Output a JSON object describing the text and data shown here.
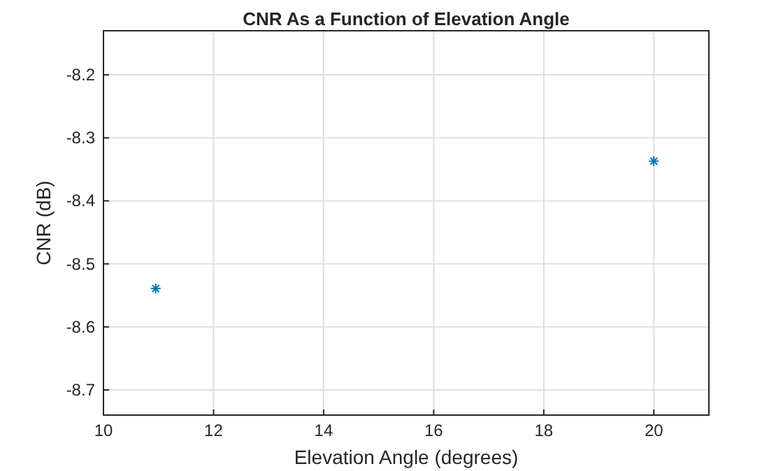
{
  "chart_data": {
    "type": "scatter",
    "title": "CNR As a Function of Elevation Angle",
    "xlabel": "Elevation Angle (degrees)",
    "ylabel": "CNR (dB)",
    "x": [
      10.95,
      20
    ],
    "series": [
      {
        "color": "#0072bd",
        "values": [
          -8.539,
          -8.337
        ]
      }
    ],
    "xlim": [
      10,
      21
    ],
    "xticks": [
      10,
      12,
      14,
      16,
      18,
      20
    ],
    "ylim": [
      -8.74,
      -8.13
    ],
    "yticks": [
      -8.2,
      -8.3,
      -8.4,
      -8.5,
      -8.6,
      -8.7
    ],
    "grid": true,
    "marker": "cross"
  }
}
